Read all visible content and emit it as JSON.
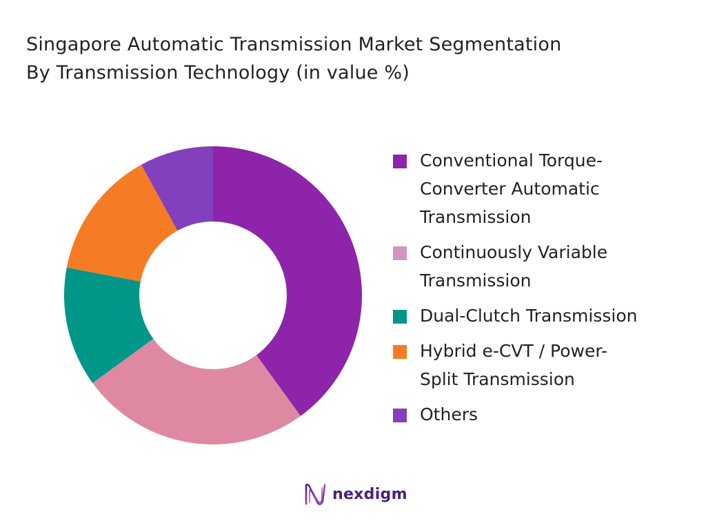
{
  "title_lines": [
    "Singapore Automatic Transmission Market Segmentation",
    "By Transmission Technology (in value %)"
  ],
  "chart_data": {
    "type": "pie",
    "style": "donut",
    "title": "Singapore Automatic Transmission Market Segmentation By Transmission Technology (in value %)",
    "unit": "%",
    "start_angle_deg": 0,
    "direction": "clockwise",
    "legend_position": "right",
    "categories": [
      "Conventional Torque-Converter Automatic Transmission",
      "Continuously Variable Transmission",
      "Dual-Clutch Transmission",
      "Hybrid e-CVT / Power-Split Transmission",
      "Others"
    ],
    "values": [
      40,
      25,
      13,
      14,
      8
    ],
    "colors": [
      "#8e24aa",
      "#de89a1",
      "#009688",
      "#f57c24",
      "#8240bd"
    ],
    "legend_colors": [
      "#8e24aa",
      "#cf97bb",
      "#009688",
      "#f57c24",
      "#8240bd"
    ]
  },
  "legend": {
    "items": [
      {
        "label_lines": [
          "Conventional Torque-",
          "Converter Automatic",
          "Transmission"
        ]
      },
      {
        "label_lines": [
          "Continuously Variable",
          "Transmission"
        ]
      },
      {
        "label_lines": [
          "Dual-Clutch Transmission"
        ]
      },
      {
        "label_lines": [
          "Hybrid e-CVT / Power-",
          "Split Transmission"
        ]
      },
      {
        "label_lines": [
          "Others"
        ]
      }
    ]
  },
  "brand": {
    "name": "nexdigm",
    "logo_icon": "nexdigm-wave-logo",
    "color": "#4a1f7a"
  }
}
